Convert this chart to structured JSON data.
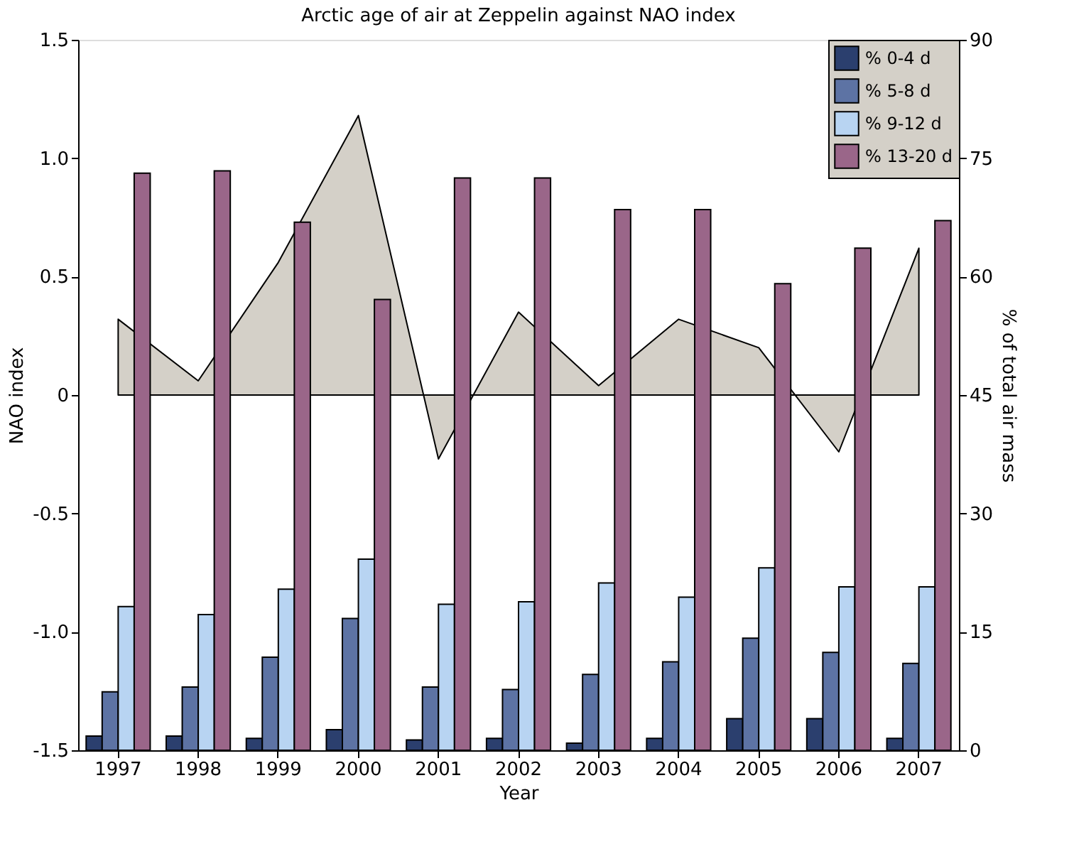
{
  "chart_data": {
    "type": "bar",
    "title": "Arctic age of air at Zeppelin against NAO index",
    "xlabel": "Year",
    "ylabel": "NAO index",
    "y2label": "% of total air mass",
    "categories": [
      "1997",
      "1998",
      "1999",
      "2000",
      "2001",
      "2002",
      "2003",
      "2004",
      "2005",
      "2006",
      "2007"
    ],
    "series": [
      {
        "type": "area",
        "color": "#d4d0c8",
        "values": [
          0.32,
          0.06,
          0.56,
          1.18,
          -0.27,
          0.35,
          0.04,
          0.32,
          0.2,
          -0.24,
          0.62
        ]
      },
      {
        "name": "% 0-4 d",
        "color": "#2b3f6e",
        "axis": "y2",
        "values": [
          1.8,
          1.8,
          1.5,
          2.6,
          1.3,
          1.5,
          0.9,
          1.5,
          4.0,
          4.0,
          1.5
        ]
      },
      {
        "name": "% 5-8 d",
        "color": "#5d73a4",
        "axis": "y2",
        "values": [
          7.4,
          8.0,
          11.8,
          16.7,
          8.0,
          7.7,
          9.6,
          11.2,
          14.2,
          12.4,
          11.0
        ]
      },
      {
        "name": "% 9-12 d",
        "color": "#b8d4f2",
        "axis": "y2",
        "values": [
          18.2,
          17.2,
          20.4,
          24.2,
          18.5,
          18.8,
          21.2,
          19.4,
          23.1,
          20.7,
          20.7
        ]
      },
      {
        "name": "% 13-20 d",
        "color": "#9a6689",
        "axis": "y2",
        "values": [
          73.1,
          73.4,
          66.9,
          57.1,
          72.5,
          72.5,
          68.5,
          68.5,
          59.1,
          63.6,
          67.1
        ]
      }
    ],
    "ylim": [
      -1.5,
      1.5
    ],
    "yticks": [
      -1.5,
      {
        "value": -1.0,
        "label": "-1.0"
      },
      -0.5,
      0,
      0.5,
      {
        "value": 1.0,
        "label": "1.0"
      },
      1.5
    ],
    "y2lim": [
      0,
      90
    ],
    "y2ticks": [
      0,
      15,
      30,
      45,
      60,
      75,
      90
    ],
    "legend": "top right",
    "grid": false
  }
}
